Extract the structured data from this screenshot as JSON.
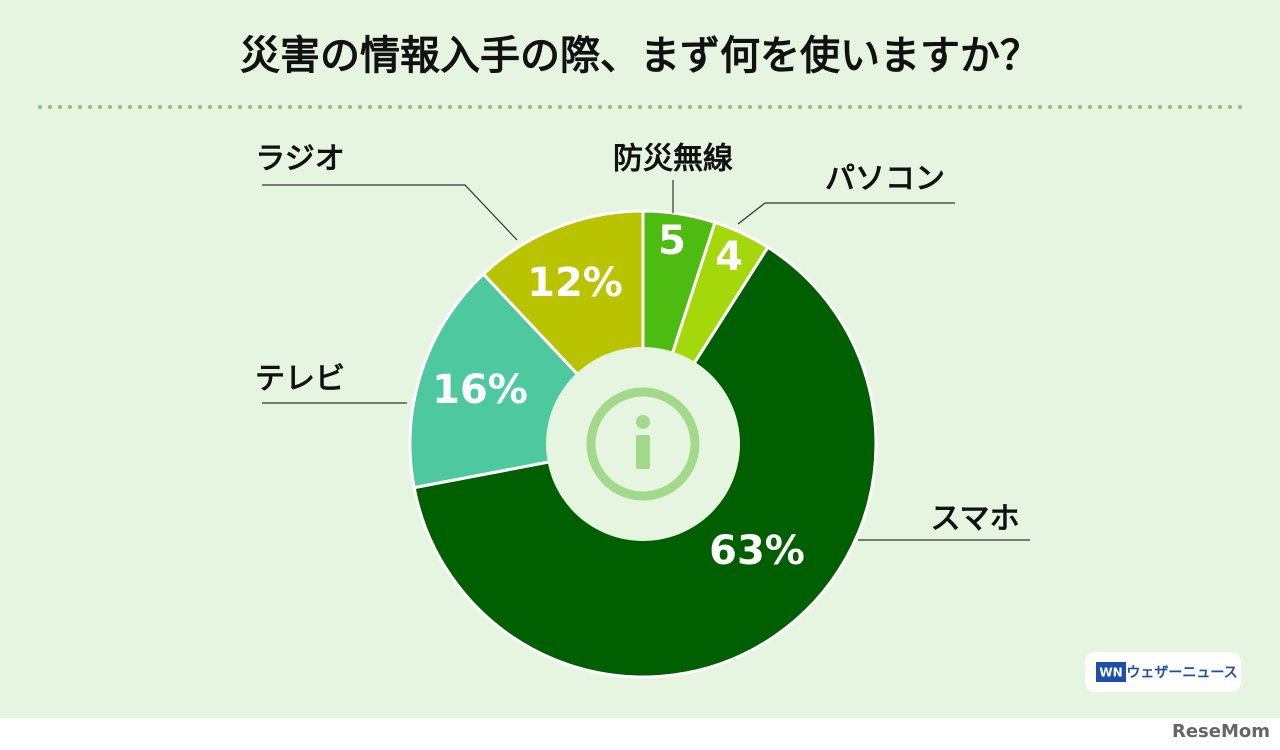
{
  "chart_data": {
    "type": "donut",
    "title": "災害の情報入手の際、まず何を使いますか？",
    "categories": [
      "防災無線",
      "パソコン",
      "スマホ",
      "テレビ",
      "ラジオ"
    ],
    "values": [
      5,
      4,
      63,
      16,
      12
    ],
    "value_labels": [
      "5",
      "4",
      "63%",
      "16%",
      "12%"
    ],
    "colors": [
      "#4dbb0f",
      "#a4d80a",
      "#005f00",
      "#4ec99f",
      "#b9c300"
    ]
  },
  "branding": {
    "logo_mark": "WN",
    "logo_text": "ウェザーニュース",
    "watermark": "ReseMom"
  }
}
